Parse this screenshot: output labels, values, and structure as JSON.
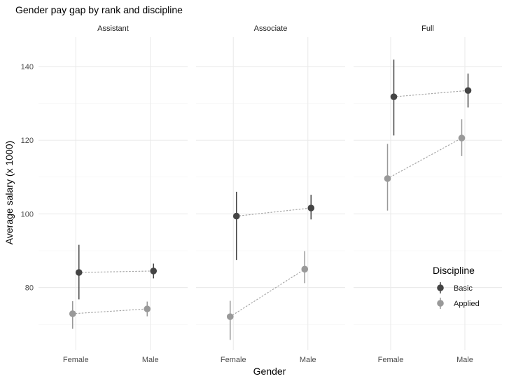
{
  "chart_data": {
    "type": "scatter",
    "title": "Gender pay gap by rank and discipline",
    "xlabel": "Gender",
    "ylabel": "Average salary (x 1000)",
    "categories": [
      "Female",
      "Male"
    ],
    "facets": [
      "Assistant",
      "Associate",
      "Full"
    ],
    "ylim": [
      63,
      148
    ],
    "yticks": [
      80,
      100,
      120,
      140
    ],
    "grid": true,
    "legend": {
      "title": "Discipline",
      "position": "right-bottom",
      "entries": [
        "Basic",
        "Applied"
      ]
    },
    "series": [
      {
        "name": "Basic",
        "color": "#444444",
        "panels": [
          {
            "facet": "Assistant",
            "points": [
              {
                "x": "Female",
                "y": 84.1,
                "low": 76.8,
                "high": 91.6
              },
              {
                "x": "Male",
                "y": 84.5,
                "low": 82.5,
                "high": 86.5
              }
            ]
          },
          {
            "facet": "Associate",
            "points": [
              {
                "x": "Female",
                "y": 99.4,
                "low": 87.5,
                "high": 106.0
              },
              {
                "x": "Male",
                "y": 101.6,
                "low": 98.5,
                "high": 105.2
              }
            ]
          },
          {
            "facet": "Full",
            "points": [
              {
                "x": "Female",
                "y": 131.8,
                "low": 121.3,
                "high": 141.9
              },
              {
                "x": "Male",
                "y": 133.5,
                "low": 128.9,
                "high": 138.1
              }
            ]
          }
        ]
      },
      {
        "name": "Applied",
        "color": "#999999",
        "panels": [
          {
            "facet": "Assistant",
            "points": [
              {
                "x": "Female",
                "y": 72.9,
                "low": 68.8,
                "high": 76.3
              },
              {
                "x": "Male",
                "y": 74.2,
                "low": 72.2,
                "high": 76.2
              }
            ]
          },
          {
            "facet": "Associate",
            "points": [
              {
                "x": "Female",
                "y": 72.1,
                "low": 65.8,
                "high": 76.4
              },
              {
                "x": "Male",
                "y": 85.0,
                "low": 81.2,
                "high": 89.9
              }
            ]
          },
          {
            "facet": "Full",
            "points": [
              {
                "x": "Female",
                "y": 109.6,
                "low": 100.9,
                "high": 119.0
              },
              {
                "x": "Male",
                "y": 120.6,
                "low": 115.7,
                "high": 125.7
              }
            ]
          }
        ]
      }
    ]
  }
}
